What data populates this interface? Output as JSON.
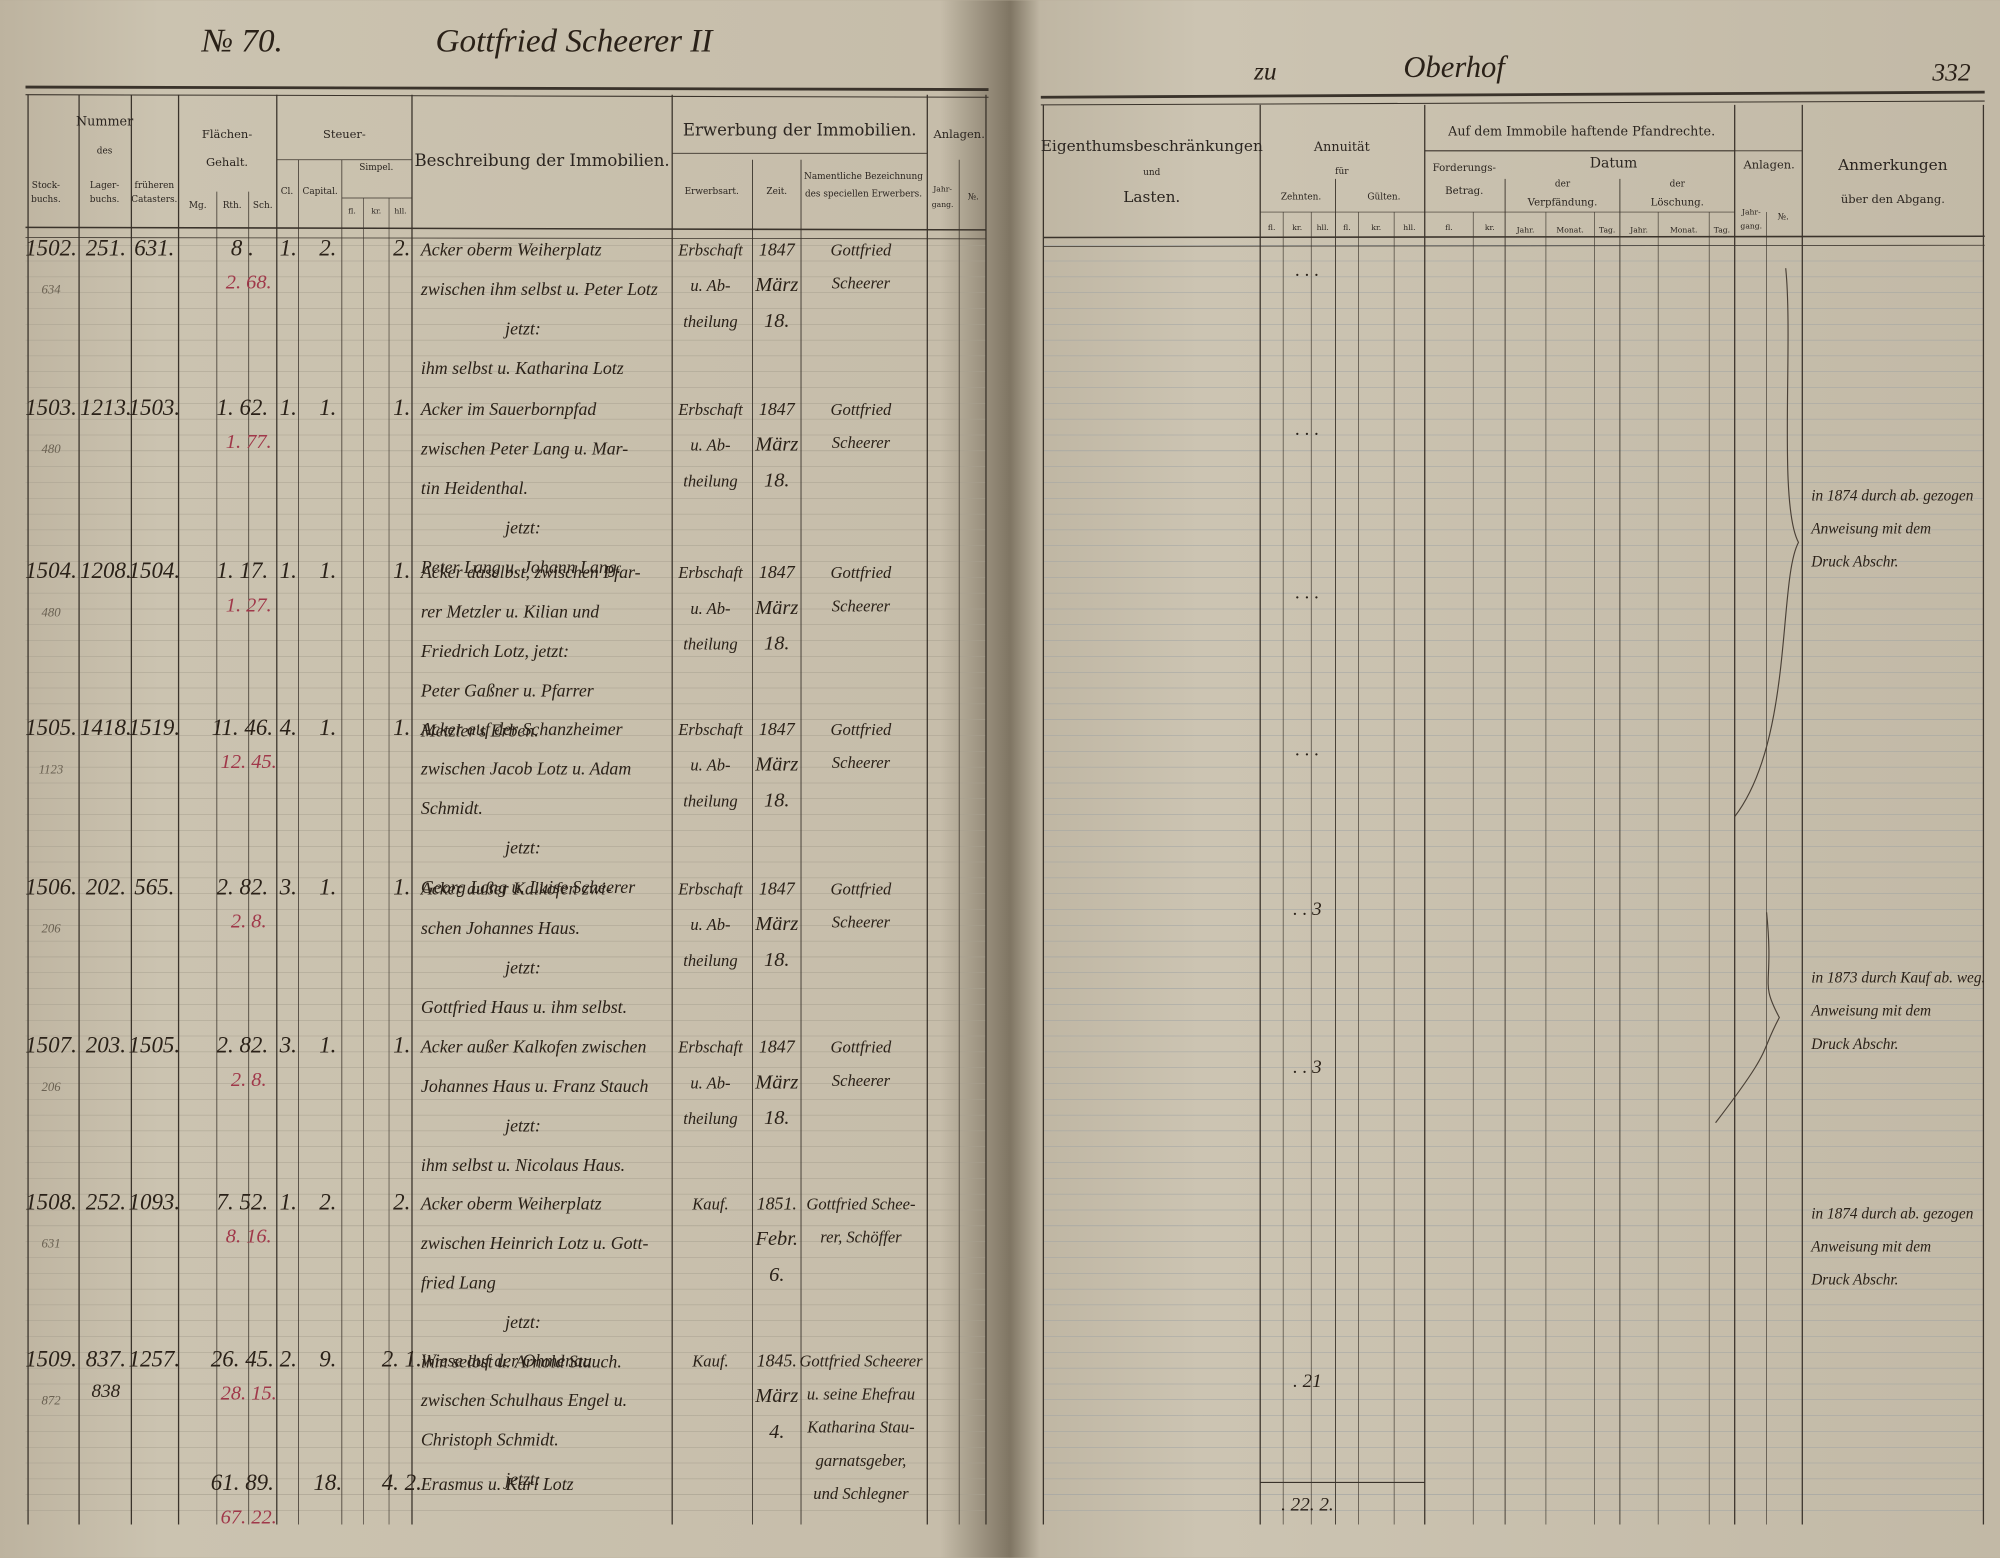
{
  "header": {
    "left_number": "№ 70.",
    "left_owner": "Gottfried Scheerer II",
    "right_place_prefix": "zu",
    "right_place": "Oberhof",
    "page_number": "332"
  },
  "left_header": [
    "Nummer",
    "des",
    "Stock-",
    "buchs.",
    "Lager-",
    "buchs.",
    "früheren",
    "Catasters.",
    "Flächen-",
    "Gehalt.",
    "Mg.",
    "Rth.",
    "Sch.",
    "Steuer-",
    "Cl.",
    "Capital.",
    "Simpel.",
    "fl.",
    "kr.",
    "hll.",
    "Beschreibung der Immobilien.",
    "Erwerbung der Immobilien.",
    "Erwerbsart.",
    "Zeit.",
    "Namentliche Bezeichnung",
    "des speciellen Erwerbers.",
    "Anlagen.",
    "Jahr-",
    "gang.",
    "№."
  ],
  "right_header": [
    "Eigenthumsbeschränkungen",
    "und",
    "Lasten.",
    "Annuität",
    "für",
    "Zehnten.",
    "Gülten.",
    "fl.",
    "kr.",
    "hll.",
    "fl.",
    "kr.",
    "hll.",
    "Auf dem Immobile haftende Pfandrechte.",
    "Forderungs-",
    "Betrag.",
    "Datum",
    "der",
    "Verpfändung.",
    "der",
    "Löschung.",
    "fl.",
    "kr.",
    "Jahr.",
    "Monat.",
    "Tag.",
    "Jahr.",
    "Monat.",
    "Tag.",
    "Anlagen.",
    "Jahr-",
    "gang.",
    "№.",
    "Anmerkungen",
    "über den Abgang."
  ],
  "rows": [
    {
      "stock": "1502.",
      "lager": "251.",
      "frueher": "631.",
      "flaeche": "8 .",
      "flaeche_red": "2. 68.",
      "cl": "1.",
      "capital": "2.",
      "simpel": "2.",
      "margin": "634",
      "description": [
        "Acker oberm Weiherplatz",
        "zwischen ihm selbst u. Peter Lotz",
        "jetzt:",
        "ihm selbst u. Katharina Lotz"
      ],
      "erwerbsart": [
        "Erbschaft",
        "u. Ab-",
        "theilung"
      ],
      "zeit": [
        "1847",
        "März",
        "18."
      ],
      "erwerber": [
        "Gottfried",
        "Scheerer"
      ],
      "annuitaet": ". . ."
    },
    {
      "stock": "1503.",
      "lager": "1213.",
      "frueher": "1503.",
      "flaeche": "1. 62.",
      "flaeche_red": "1. 77.",
      "cl": "1.",
      "capital": "1.",
      "simpel": "1.",
      "margin": "480",
      "description": [
        "Acker im Sauerbornpfad",
        "zwischen Peter Lang u. Mar-",
        "tin Heidenthal.",
        "jetzt:",
        "Peter Lang u. Johann Lang."
      ],
      "erwerbsart": [
        "Erbschaft",
        "u. Ab-",
        "theilung"
      ],
      "zeit": [
        "1847",
        "März",
        "18."
      ],
      "erwerber": [
        "Gottfried",
        "Scheerer"
      ],
      "annuitaet": ". . ."
    },
    {
      "stock": "1504.",
      "lager": "1208.",
      "frueher": "1504.",
      "flaeche": "1. 17.",
      "flaeche_red": "1. 27.",
      "cl": "1.",
      "capital": "1.",
      "simpel": "1.",
      "margin": "480",
      "description": [
        "Acker daselbst, zwischen Pfar-",
        "rer Metzler u. Kilian und",
        "Friedrich Lotz,   jetzt:",
        "Peter Gaßner u. Pfarrer",
        "Metzler's Erben."
      ],
      "erwerbsart": [
        "Erbschaft",
        "u. Ab-",
        "theilung"
      ],
      "zeit": [
        "1847",
        "März",
        "18."
      ],
      "erwerber": [
        "Gottfried",
        "Scheerer"
      ],
      "annuitaet": ". . ."
    },
    {
      "stock": "1505.",
      "lager": "1418.",
      "frueher": "1519.",
      "flaeche": "11. 46.",
      "flaeche_red": "12. 45.",
      "cl": "4.",
      "capital": "1.",
      "simpel": "1.",
      "margin": "1123",
      "description": [
        "Acker auf der Schanzheimer",
        "zwischen Jacob Lotz u. Adam",
        "Schmidt.",
        "jetzt:",
        "Georg Lang u. Luise Scheerer"
      ],
      "erwerbsart": [
        "Erbschaft",
        "u. Ab-",
        "theilung"
      ],
      "zeit": [
        "1847",
        "März",
        "18."
      ],
      "erwerber": [
        "Gottfried",
        "Scheerer"
      ],
      "annuitaet": ". . ."
    },
    {
      "stock": "1506.",
      "lager": "202.",
      "frueher": "565.",
      "flaeche": "2. 82.",
      "flaeche_red": "2. 8.",
      "cl": "3.",
      "capital": "1.",
      "simpel": "1.",
      "margin": "206",
      "description": [
        "Acker außer Kalkofen zwi-",
        "schen Johannes Haus.",
        "jetzt:",
        "Gottfried Haus u. ihm selbst."
      ],
      "erwerbsart": [
        "Erbschaft",
        "u. Ab-",
        "theilung"
      ],
      "zeit": [
        "1847",
        "März",
        "18."
      ],
      "erwerber": [
        "Gottfried",
        "Scheerer"
      ],
      "annuitaet": ". . 3"
    },
    {
      "stock": "1507.",
      "lager": "203.",
      "frueher": "1505.",
      "flaeche": "2. 82.",
      "flaeche_red": "2. 8.",
      "cl": "3.",
      "capital": "1.",
      "simpel": "1.",
      "margin": "206",
      "description": [
        "Acker außer Kalkofen zwischen",
        "Johannes Haus u. Franz Stauch",
        "jetzt:",
        "ihm selbst u. Nicolaus Haus."
      ],
      "erwerbsart": [
        "Erbschaft",
        "u. Ab-",
        "theilung"
      ],
      "zeit": [
        "1847",
        "März",
        "18."
      ],
      "erwerber": [
        "Gottfried",
        "Scheerer"
      ],
      "annuitaet": ". . 3"
    },
    {
      "stock": "1508.",
      "lager": "252.",
      "frueher": "1093.",
      "flaeche": "7. 52.",
      "flaeche_red": "8. 16.",
      "cl": "1.",
      "capital": "2.",
      "simpel": "2.",
      "margin": "631",
      "description": [
        "Acker oberm Weiherplatz",
        "zwischen Heinrich Lotz u. Gott-",
        "fried Lang",
        "jetzt:",
        "ihm selbst u. Arnold Stauch."
      ],
      "erwerbsart": [
        "Kauf."
      ],
      "zeit": [
        "1851.",
        "Febr.",
        "6."
      ],
      "erwerber": [
        "Gottfried Schee-",
        "rer, Schöffer"
      ],
      "annuitaet": ""
    },
    {
      "stock": "1509.",
      "lager": "837.",
      "lager2": "838",
      "frueher": "1257.",
      "flaeche": "26. 45.",
      "flaeche_red": "28. 15.",
      "cl": "2.",
      "capital": "9.",
      "simpel": "2. 1.",
      "margin": "872",
      "description": [
        "Wiese auf der Ohmenau",
        "zwischen Schulhaus Engel u.",
        "Christoph Schmidt.",
        "jetzt:"
      ],
      "erwerbsart": [
        "Kauf."
      ],
      "zeit": [
        "1845.",
        "März",
        "4."
      ],
      "erwerber": [
        "Gottfried Scheerer",
        "u. seine Ehefrau",
        "Katharina Stau-",
        "garnatsgeber,",
        "und Schlegner"
      ],
      "annuitaet": ". 21"
    },
    {
      "stock": "",
      "lager": "",
      "frueher": "",
      "flaeche": "61. 89.",
      "flaeche_red": "67. 22.",
      "cl": "",
      "capital": "18.",
      "simpel": "4. 2.",
      "margin": "",
      "description": [
        "Erasmus u. Karl Lotz"
      ],
      "erwerbsart": [],
      "zeit": [],
      "erwerber": [],
      "annuitaet": ". 22. 2."
    }
  ],
  "notes": [
    [
      "in 1874 durch ab. gezogen",
      "Anweisung mit dem",
      "Druck Abschr."
    ],
    [
      "in 1873 durch Kauf ab. weg.",
      "Anweisung mit dem",
      "Druck Abschr."
    ],
    [
      "in 1874 durch ab. gezogen",
      "Anweisung mit dem",
      "Druck Abschr."
    ]
  ]
}
